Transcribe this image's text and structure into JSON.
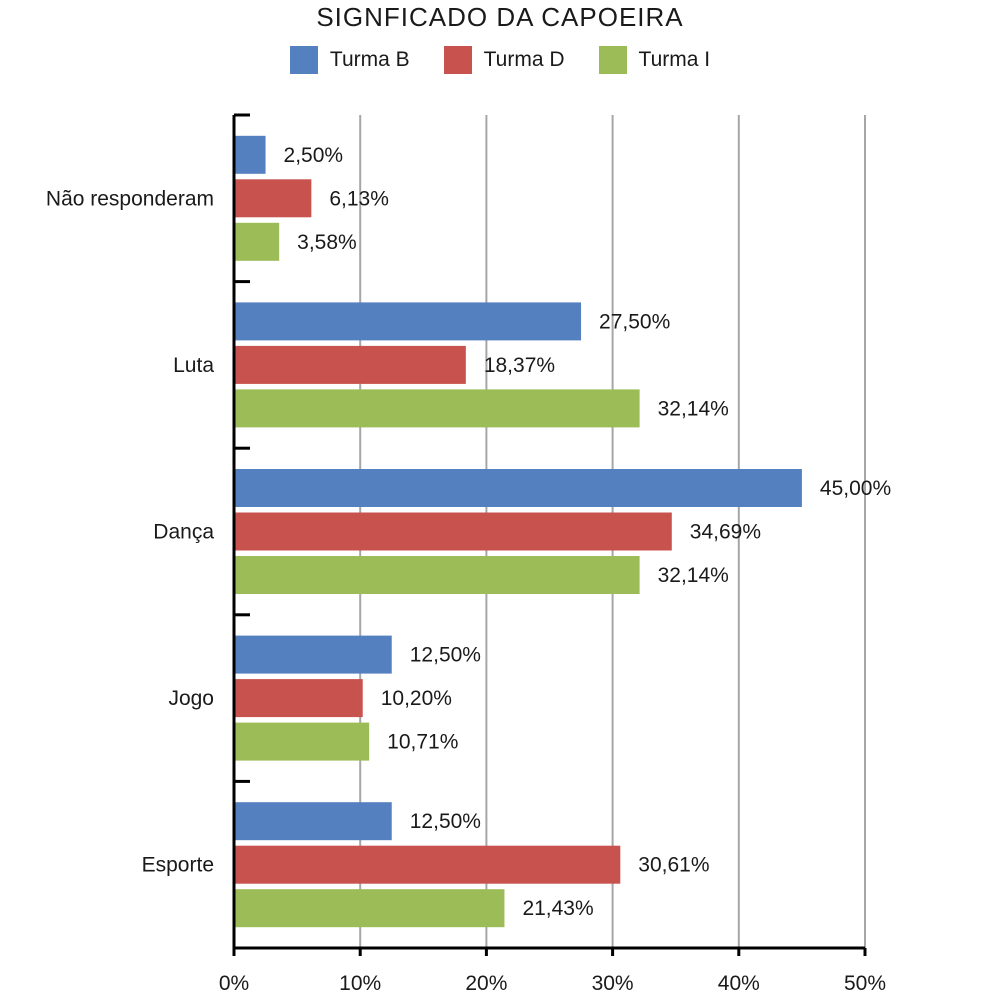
{
  "chart_data": {
    "type": "bar",
    "orientation": "horizontal",
    "title": "SIGNFICADO DA CAPOEIRA",
    "xlabel": "",
    "ylabel": "",
    "xlim": [
      0,
      50
    ],
    "x_ticks": [
      "0%",
      "10%",
      "20%",
      "30%",
      "40%",
      "50%"
    ],
    "grid": "vertical",
    "legend_position": "top",
    "categories": [
      "Não responderam",
      "Luta",
      "Dança",
      "Jogo",
      "Esporte"
    ],
    "series": [
      {
        "name": "Turma B",
        "color": "#5580c0",
        "values": [
          2.5,
          27.5,
          45.0,
          12.5,
          12.5
        ],
        "labels": [
          "2,50%",
          "27,50%",
          "45,00%",
          "12,50%",
          "12,50%"
        ]
      },
      {
        "name": "Turma D",
        "color": "#c8524e",
        "values": [
          6.13,
          18.37,
          34.69,
          10.2,
          30.61
        ],
        "labels": [
          "6,13%",
          "18,37%",
          "34,69%",
          "10,20%",
          "30,61%"
        ]
      },
      {
        "name": "Turma I",
        "color": "#9cbc58",
        "values": [
          3.58,
          32.14,
          32.14,
          10.71,
          21.43
        ],
        "labels": [
          "3,58%",
          "32,14%",
          "32,14%",
          "10,71%",
          "21,43%"
        ]
      }
    ]
  }
}
